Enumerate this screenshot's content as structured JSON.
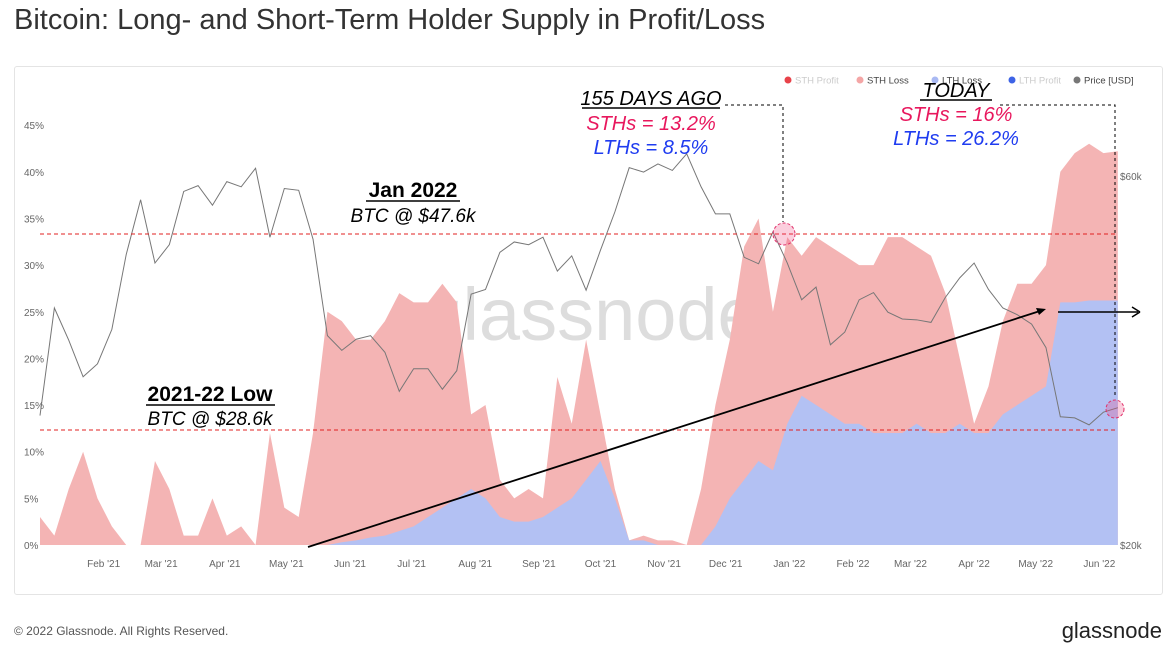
{
  "title": "Bitcoin: Long- and Short-Term Holder Supply in Profit/Loss",
  "footer": "© 2022 Glassnode. All Rights Reserved.",
  "brand": "glassnode",
  "watermark": "glassnode",
  "chart_data": {
    "type": "area",
    "title": "Bitcoin: Long- and Short-Term Holder Supply in Profit/Loss",
    "start_date": "2021-01-01",
    "step_days": 7,
    "legend": [
      {
        "name": "STH Profit",
        "color": "#e8424a",
        "active": false
      },
      {
        "name": "STH Loss",
        "color": "#f4a6a6",
        "active": true
      },
      {
        "name": "LTH Loss",
        "color": "#a9b9f3",
        "active": true
      },
      {
        "name": "LTH Profit",
        "color": "#3d63e6",
        "active": false
      },
      {
        "name": "Price [USD]",
        "color": "#777777",
        "active": true
      }
    ],
    "legend_position": "top-right",
    "y_ticks": [
      "0%",
      "5%",
      "10%",
      "15%",
      "20%",
      "25%",
      "30%",
      "35%",
      "40%",
      "45%"
    ],
    "y2_ticks": [
      "$20k",
      "$60k"
    ],
    "x_ticks": [
      "Feb '21",
      "Mar '21",
      "Apr '21",
      "May '21",
      "Jun '21",
      "Jul '21",
      "Aug '21",
      "Sep '21",
      "Oct '21",
      "Nov '21",
      "Dec '21",
      "Jan '22",
      "Feb '22",
      "Mar '22",
      "Apr '22",
      "May '22",
      "Jun '22"
    ],
    "ylim": [
      0,
      45
    ],
    "y2lim_usd_log": [
      20000,
      60000
    ],
    "series": [
      {
        "name": "STH Loss",
        "unit": "% supply",
        "values": [
          3,
          1,
          6,
          10,
          5,
          2,
          0,
          0,
          9,
          6,
          1,
          1,
          5,
          1,
          2,
          0,
          12,
          4,
          3,
          12,
          25,
          23.7,
          21.5,
          21.2,
          23,
          25.5,
          24,
          23,
          24,
          21,
          8,
          10,
          4,
          2.5,
          3.5,
          2,
          14,
          8,
          15,
          5,
          1,
          0,
          0.5,
          0.5,
          0.5,
          0,
          6,
          13,
          17,
          25,
          26,
          17,
          20,
          15,
          18,
          18,
          18,
          17,
          18,
          21,
          21,
          19,
          19,
          15,
          7,
          1,
          5,
          10,
          13,
          12,
          13,
          14,
          16,
          16.8,
          15.8,
          16
        ]
      },
      {
        "name": "LTH Loss",
        "unit": "% supply",
        "values": [
          0,
          0,
          0,
          0,
          0,
          0,
          0,
          0,
          0,
          0,
          0,
          0,
          0,
          0,
          0,
          0,
          0,
          0,
          0,
          0,
          0,
          0.3,
          0.5,
          0.8,
          1,
          1.5,
          2,
          3,
          4,
          5,
          6,
          5,
          3,
          2.5,
          2.5,
          3,
          4,
          5,
          7,
          9,
          5,
          0.5,
          0.5,
          0,
          0,
          0,
          0,
          2,
          5,
          7,
          9,
          8,
          13,
          16,
          15,
          14,
          13,
          13,
          12,
          12,
          12,
          13,
          12,
          12,
          13,
          12,
          12,
          14,
          15,
          16,
          17,
          26,
          26,
          26.2,
          26.2,
          26.2
        ]
      },
      {
        "name": "Price [USD]",
        "unit": "USD thousands",
        "values": [
          29.4,
          40.5,
          36.8,
          33,
          34.3,
          38,
          47.5,
          55.9,
          46.3,
          48.9,
          57.3,
          58.3,
          55,
          59,
          58.1,
          61.4,
          50,
          57.8,
          57.5,
          49.7,
          37.3,
          35.7,
          36.9,
          37.3,
          35.5,
          31.6,
          33.8,
          33.8,
          31.8,
          33.6,
          42.2,
          42.8,
          47.8,
          49.3,
          48.9,
          50,
          45.2,
          47.3,
          42.7,
          48.1,
          53.9,
          61.5,
          60.7,
          62.2,
          61,
          64.1,
          58.1,
          53.6,
          53.6,
          47.1,
          46.2,
          50.8,
          46.3,
          41.5,
          43.1,
          36.3,
          37.7,
          41.5,
          42.4,
          40,
          39.2,
          39.1,
          38.8,
          41.8,
          44.3,
          46.3,
          42.8,
          40.5,
          39.7,
          38.6,
          36,
          29.3,
          29.2,
          28.6,
          29.7,
          30.1
        ]
      }
    ],
    "annotations": {
      "jan_title": "Jan 2022",
      "jan_sub": "BTC @ $47.6k",
      "jan_price": 47.6,
      "low_title": "2021-22 Low",
      "low_sub": "BTC @ $28.6k",
      "low_price": 28.6,
      "ago_title": "155 DAYS AGO",
      "ago_sth": "STHs = 13.2%",
      "ago_lth": "LTHs = 8.5%",
      "today_title": "TODAY",
      "today_sth": "STHs = 16%",
      "today_lth": "LTHs = 26.2%"
    }
  }
}
